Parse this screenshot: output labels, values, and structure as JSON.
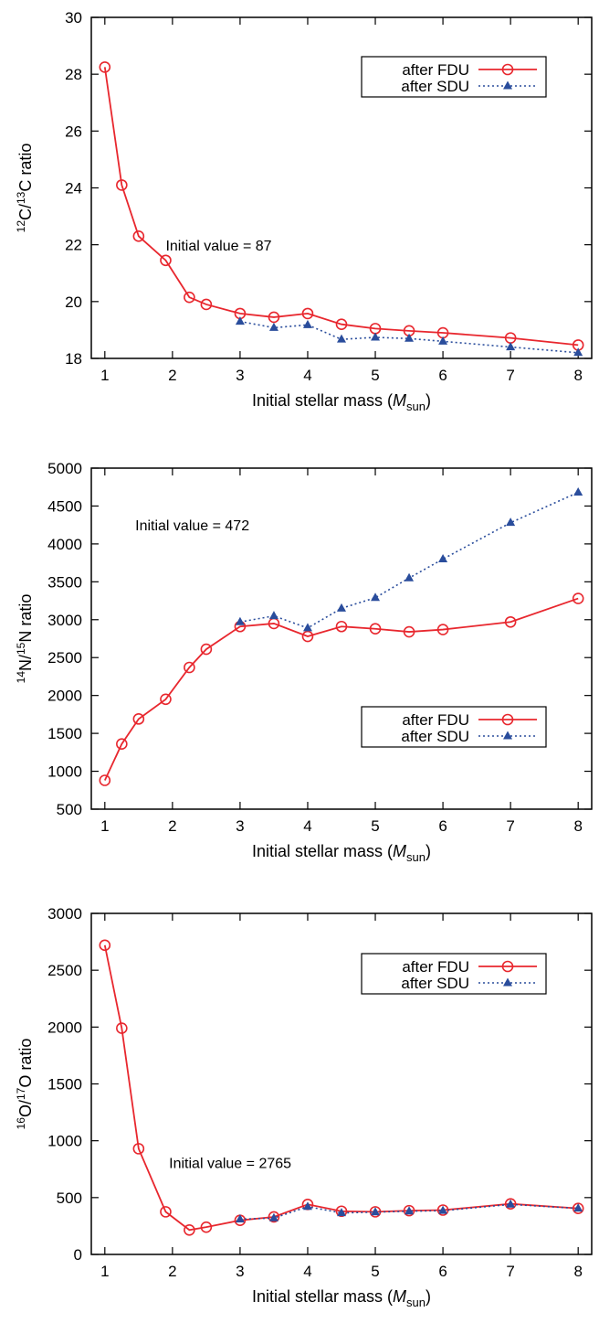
{
  "chart_data": [
    {
      "type": "line",
      "ylabel": {
        "sup1": "12",
        "el1": "C/",
        "sup2": "13",
        "el2": "C ratio"
      },
      "xlabel": {
        "pre": "Initial stellar mass (",
        "var": "M",
        "sub": "sun",
        "post": ")"
      },
      "xlim": [
        0.8,
        8.2
      ],
      "ylim": [
        18,
        30
      ],
      "xticks": [
        1,
        2,
        3,
        4,
        5,
        6,
        7,
        8
      ],
      "yticks": [
        18,
        20,
        22,
        24,
        26,
        28,
        30
      ],
      "annotation": {
        "text": "Initial value = 87",
        "x": 1.9,
        "y": 21.8
      },
      "legend_position": "top-right",
      "series": [
        {
          "name": "after FDU",
          "color": "#e8272e",
          "marker": "circle",
          "line": "solid",
          "x": [
            1,
            1.25,
            1.5,
            1.9,
            2.25,
            2.5,
            3,
            3.5,
            4,
            4.5,
            5,
            5.5,
            6,
            7,
            8
          ],
          "y": [
            28.25,
            24.1,
            22.3,
            21.45,
            20.15,
            19.9,
            19.58,
            19.45,
            19.58,
            19.2,
            19.05,
            18.97,
            18.9,
            18.72,
            18.47
          ]
        },
        {
          "name": "after SDU",
          "color": "#2a4d9c",
          "marker": "triangle",
          "line": "dotted",
          "x": [
            3,
            3.5,
            4,
            4.5,
            5,
            5.5,
            6,
            7,
            8
          ],
          "y": [
            19.3,
            19.08,
            19.18,
            18.67,
            18.74,
            18.7,
            18.6,
            18.4,
            18.2
          ]
        }
      ]
    },
    {
      "type": "line",
      "ylabel": {
        "sup1": "14",
        "el1": "N/",
        "sup2": "15",
        "el2": "N ratio"
      },
      "xlabel": {
        "pre": "Initial stellar mass (",
        "var": "M",
        "sub": "sun",
        "post": ")"
      },
      "xlim": [
        0.8,
        8.2
      ],
      "ylim": [
        500,
        5000
      ],
      "xticks": [
        1,
        2,
        3,
        4,
        5,
        6,
        7,
        8
      ],
      "yticks": [
        500,
        1000,
        1500,
        2000,
        2500,
        3000,
        3500,
        4000,
        4500,
        5000
      ],
      "annotation": {
        "text": "Initial value = 472",
        "x": 1.45,
        "y": 4180
      },
      "legend_position": "bottom-right",
      "series": [
        {
          "name": "after FDU",
          "color": "#e8272e",
          "marker": "circle",
          "line": "solid",
          "x": [
            1,
            1.25,
            1.5,
            1.9,
            2.25,
            2.5,
            3,
            3.5,
            4,
            4.5,
            5,
            5.5,
            6,
            7,
            8
          ],
          "y": [
            880,
            1360,
            1690,
            1950,
            2370,
            2610,
            2910,
            2950,
            2780,
            2910,
            2880,
            2840,
            2870,
            2970,
            3280
          ]
        },
        {
          "name": "after SDU",
          "color": "#2a4d9c",
          "marker": "triangle",
          "line": "dotted",
          "x": [
            3,
            3.5,
            4,
            4.5,
            5,
            5.5,
            6,
            7,
            8
          ],
          "y": [
            2970,
            3050,
            2890,
            3150,
            3290,
            3550,
            3800,
            4280,
            4680
          ]
        }
      ]
    },
    {
      "type": "line",
      "ylabel": {
        "sup1": "16",
        "el1": "O/",
        "sup2": "17",
        "el2": "O ratio"
      },
      "xlabel": {
        "pre": "Initial stellar mass (",
        "var": "M",
        "sub": "sun",
        "post": ")"
      },
      "xlim": [
        0.8,
        8.2
      ],
      "ylim": [
        0,
        3000
      ],
      "xticks": [
        1,
        2,
        3,
        4,
        5,
        6,
        7,
        8
      ],
      "yticks": [
        0,
        500,
        1000,
        1500,
        2000,
        2500,
        3000
      ],
      "annotation": {
        "text": "Initial value = 2765",
        "x": 1.95,
        "y": 760
      },
      "legend_position": "top-right",
      "series": [
        {
          "name": "after FDU",
          "color": "#e8272e",
          "marker": "circle",
          "line": "solid",
          "x": [
            1,
            1.25,
            1.5,
            1.9,
            2.25,
            2.5,
            3,
            3.5,
            4,
            4.5,
            5,
            5.5,
            6,
            7,
            8
          ],
          "y": [
            2720,
            1990,
            930,
            375,
            215,
            240,
            300,
            330,
            440,
            380,
            375,
            385,
            390,
            445,
            405
          ]
        },
        {
          "name": "after SDU",
          "color": "#2a4d9c",
          "marker": "triangle",
          "line": "dotted",
          "x": [
            3,
            3.5,
            4,
            4.5,
            5,
            5.5,
            6,
            7,
            8
          ],
          "y": [
            310,
            320,
            420,
            365,
            372,
            380,
            385,
            440,
            405
          ]
        }
      ]
    }
  ]
}
